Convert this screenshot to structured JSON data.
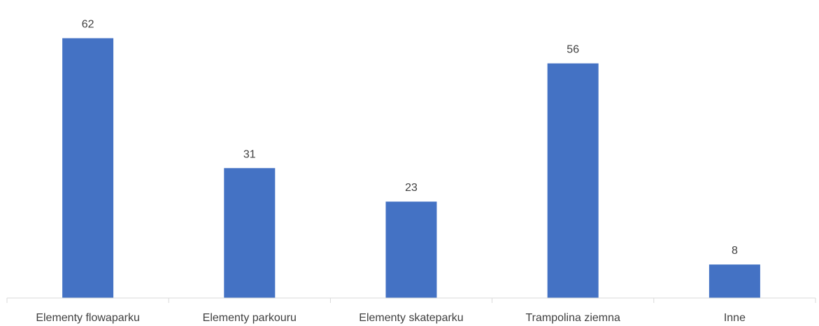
{
  "chart_data": {
    "type": "bar",
    "title": "",
    "xlabel": "",
    "ylabel": "",
    "categories": [
      "Elementy flowaparku",
      "Elementy parkouru",
      "Elementy skateparku",
      "Trampolina ziemna",
      "Inne"
    ],
    "values": [
      62,
      31,
      23,
      56,
      8
    ],
    "ylim": [
      0,
      70
    ],
    "grid": false,
    "legend": "none",
    "data_labels": true,
    "bar_color": "#4472C4",
    "axis_color": "#D9D9D9",
    "text_color": "#404040"
  }
}
